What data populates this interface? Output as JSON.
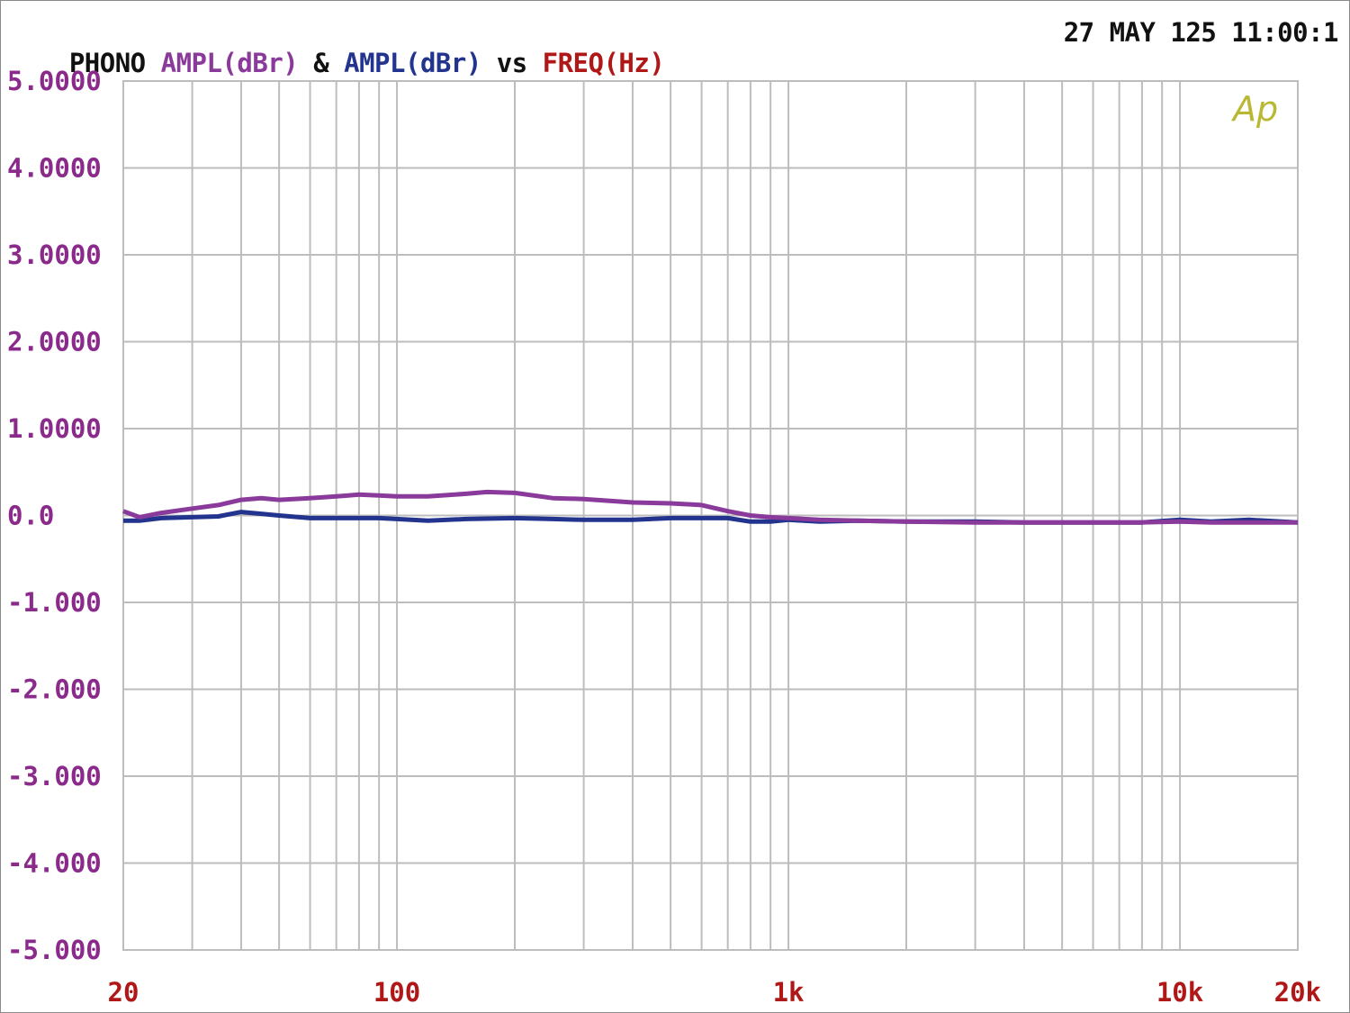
{
  "header": {
    "prefix": "PHONO ",
    "series1_label": "AMPL(dBr)",
    "amp": " & ",
    "series2_label": "AMPL(dBr)",
    "vs": " vs ",
    "xaxis_label": "FREQ(Hz)",
    "timestamp": "27 MAY 125 11:00:1"
  },
  "logo": "Ap",
  "colors": {
    "series1": "#8a3a9a",
    "series2": "#23348e",
    "ytick": "#8a2a8a",
    "xtick": "#b01818",
    "grid": "#bdbdbd",
    "logo": "#b8b832"
  },
  "chart_data": {
    "type": "line",
    "title": "",
    "xlabel": "FREQ(Hz)",
    "ylabel": "AMPL(dBr)",
    "xscale": "log",
    "xlim": [
      20,
      20000
    ],
    "ylim": [
      -5,
      5
    ],
    "grid": true,
    "yticks": [
      {
        "value": 5,
        "label": "5.0000"
      },
      {
        "value": 4,
        "label": "4.0000"
      },
      {
        "value": 3,
        "label": "3.0000"
      },
      {
        "value": 2,
        "label": "2.0000"
      },
      {
        "value": 1,
        "label": "1.0000"
      },
      {
        "value": 0,
        "label": "0.0"
      },
      {
        "value": -1,
        "label": "-1.000"
      },
      {
        "value": -2,
        "label": "-2.000"
      },
      {
        "value": -3,
        "label": "-3.000"
      },
      {
        "value": -4,
        "label": "-4.000"
      },
      {
        "value": -5,
        "label": "-5.000"
      }
    ],
    "xticks": [
      {
        "value": 20,
        "label": "20"
      },
      {
        "value": 100,
        "label": "100"
      },
      {
        "value": 1000,
        "label": "1k"
      },
      {
        "value": 10000,
        "label": "10k"
      },
      {
        "value": 20000,
        "label": "20k"
      }
    ],
    "series": [
      {
        "color": "#8a3a9a",
        "x": [
          20,
          22,
          25,
          30,
          35,
          40,
          45,
          50,
          60,
          70,
          80,
          90,
          100,
          120,
          150,
          170,
          200,
          250,
          300,
          400,
          500,
          600,
          700,
          800,
          900,
          1000,
          1200,
          1500,
          2000,
          3000,
          4000,
          6000,
          8000,
          10000,
          12000,
          15000,
          20000
        ],
        "y": [
          0.05,
          -0.02,
          0.03,
          0.08,
          0.12,
          0.18,
          0.2,
          0.18,
          0.2,
          0.22,
          0.24,
          0.23,
          0.22,
          0.22,
          0.25,
          0.27,
          0.26,
          0.2,
          0.19,
          0.15,
          0.14,
          0.12,
          0.05,
          0.0,
          -0.02,
          -0.03,
          -0.05,
          -0.06,
          -0.07,
          -0.08,
          -0.08,
          -0.08,
          -0.08,
          -0.07,
          -0.08,
          -0.08,
          -0.08
        ]
      },
      {
        "color": "#23348e",
        "x": [
          20,
          22,
          25,
          30,
          35,
          40,
          45,
          50,
          60,
          70,
          80,
          90,
          100,
          120,
          150,
          200,
          250,
          300,
          400,
          500,
          600,
          700,
          800,
          900,
          1000,
          1200,
          1500,
          2000,
          3000,
          4000,
          6000,
          8000,
          10000,
          12000,
          15000,
          20000
        ],
        "y": [
          -0.06,
          -0.06,
          -0.03,
          -0.02,
          -0.01,
          0.04,
          0.02,
          0.0,
          -0.03,
          -0.03,
          -0.03,
          -0.03,
          -0.04,
          -0.06,
          -0.04,
          -0.03,
          -0.04,
          -0.05,
          -0.05,
          -0.03,
          -0.03,
          -0.03,
          -0.07,
          -0.07,
          -0.05,
          -0.07,
          -0.06,
          -0.07,
          -0.07,
          -0.08,
          -0.08,
          -0.08,
          -0.05,
          -0.07,
          -0.05,
          -0.08
        ]
      }
    ]
  }
}
